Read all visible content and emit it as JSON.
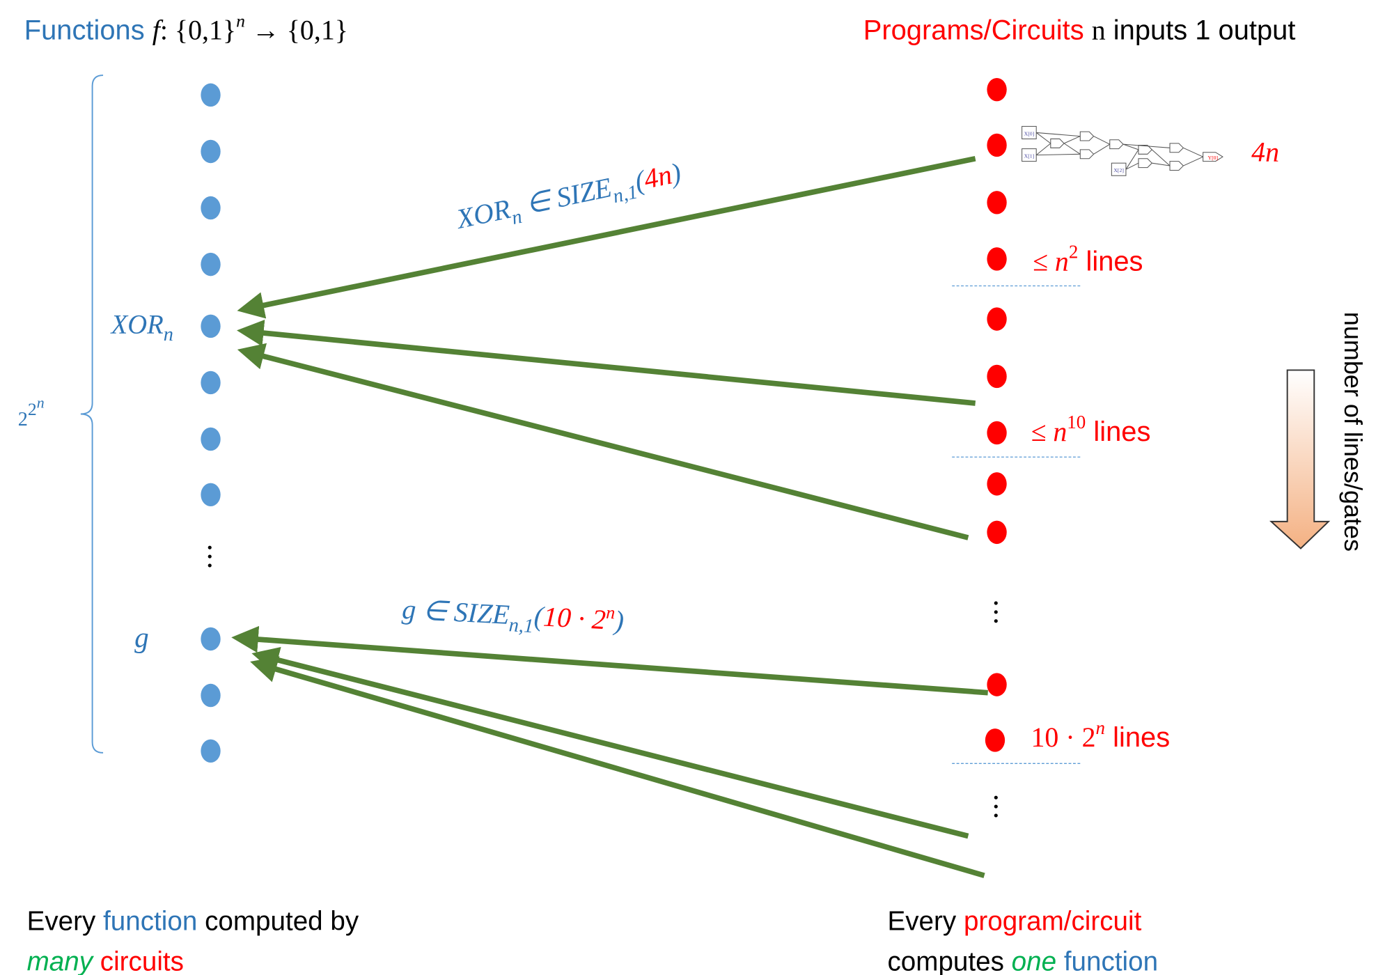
{
  "header": {
    "left": {
      "label": "Functions",
      "formula_f": "f",
      "formula_domain": ": {0,1}",
      "formula_exp": "n",
      "formula_range": " → {0,1}"
    },
    "right": {
      "label": "Programs/Circuits",
      "n": "n",
      "rest": " inputs 1 output"
    }
  },
  "count": {
    "base": "2",
    "exp_base": "2",
    "exp_exp": "n"
  },
  "functions": {
    "xor": {
      "base": "XOR",
      "sub": "n"
    },
    "g": "g"
  },
  "edges": {
    "xor": {
      "lhs": "XOR",
      "lhs_sub": "n",
      "rel": " ∈ SIZE",
      "rel_sub": "n,1",
      "open": "(",
      "size": "4n",
      "close": ")"
    },
    "g": {
      "lhs": "g",
      "rel": " ∈ SIZE",
      "rel_sub": "n,1",
      "open": "(",
      "size_coef": "10 · 2",
      "size_exp": "n",
      "close": ")"
    }
  },
  "circuit": {
    "inputs": [
      "X[0]",
      "X[1]",
      "X[2]"
    ],
    "output": "Y[0]",
    "size": "4n"
  },
  "levels": [
    {
      "prefix": "≤ n",
      "exp": "2",
      "suffix": " lines"
    },
    {
      "prefix": "≤ n",
      "exp": "10",
      "suffix": " lines"
    },
    {
      "prefix": "10 · 2",
      "exp": "n",
      "suffix": " lines"
    }
  ],
  "axis_note": "number of lines/gates",
  "footer": {
    "left": {
      "every": "Every ",
      "function": "function",
      "computed": " computed by",
      "many": "many",
      "circuits": " circuits"
    },
    "right": {
      "every": "Every ",
      "program": "program/circuit",
      "computes": "computes ",
      "one": "one",
      "function": " function"
    }
  }
}
